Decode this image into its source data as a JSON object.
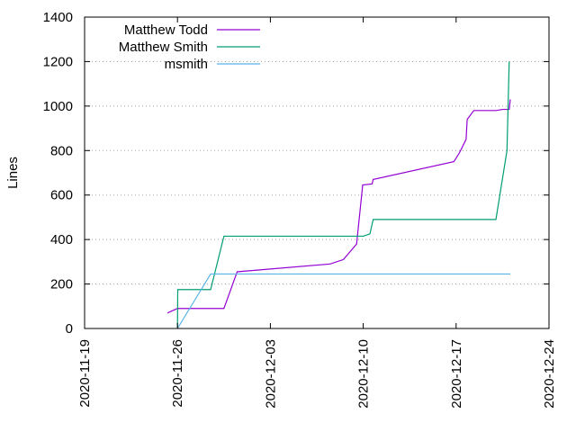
{
  "chart_data": {
    "type": "line",
    "title": "",
    "xlabel": "",
    "ylabel": "Lines",
    "x_axis_type": "date",
    "xlim": [
      "2020-11-19",
      "2020-12-24"
    ],
    "ylim": [
      0,
      1400
    ],
    "x_ticks": [
      "2020-11-19",
      "2020-11-26",
      "2020-12-03",
      "2020-12-10",
      "2020-12-17",
      "2020-12-24"
    ],
    "y_ticks": [
      0,
      200,
      400,
      600,
      800,
      1000,
      1200,
      1400
    ],
    "grid": true,
    "legend_position": "top-left",
    "series": [
      {
        "name": "Matthew Todd",
        "color": "#9400d3",
        "points": [
          [
            "2020-11-25 06:00",
            70
          ],
          [
            "2020-11-26 00:00",
            90
          ],
          [
            "2020-11-29 12:00",
            90
          ],
          [
            "2020-11-30 12:00",
            255
          ],
          [
            "2020-12-07 12:00",
            290
          ],
          [
            "2020-12-08 12:00",
            310
          ],
          [
            "2020-12-09 12:00",
            380
          ],
          [
            "2020-12-09 23:00",
            645
          ],
          [
            "2020-12-10 16:00",
            650
          ],
          [
            "2020-12-10 18:00",
            670
          ],
          [
            "2020-12-16 20:00",
            750
          ],
          [
            "2020-12-17 06:00",
            790
          ],
          [
            "2020-12-17 18:00",
            850
          ],
          [
            "2020-12-17 20:00",
            940
          ],
          [
            "2020-12-18 08:00",
            980
          ],
          [
            "2020-12-20 00:00",
            980
          ],
          [
            "2020-12-20 12:00",
            985
          ],
          [
            "2020-12-21 00:00",
            985
          ],
          [
            "2020-12-21 02:00",
            1030
          ]
        ]
      },
      {
        "name": "Matthew Smith",
        "color": "#009e73",
        "points": [
          [
            "2020-11-26 00:00",
            0
          ],
          [
            "2020-11-26 00:30",
            175
          ],
          [
            "2020-11-28 12:00",
            175
          ],
          [
            "2020-11-29 12:00",
            415
          ],
          [
            "2020-12-10 00:00",
            415
          ],
          [
            "2020-12-10 12:00",
            425
          ],
          [
            "2020-12-10 18:00",
            490
          ],
          [
            "2020-12-20 00:00",
            490
          ],
          [
            "2020-12-20 20:00",
            800
          ],
          [
            "2020-12-21 00:00",
            1200
          ]
        ]
      },
      {
        "name": "msmith",
        "color": "#56b4e9",
        "points": [
          [
            "2020-11-26 00:00",
            0
          ],
          [
            "2020-11-28 12:00",
            245
          ],
          [
            "2020-12-21 02:00",
            245
          ]
        ]
      }
    ]
  }
}
